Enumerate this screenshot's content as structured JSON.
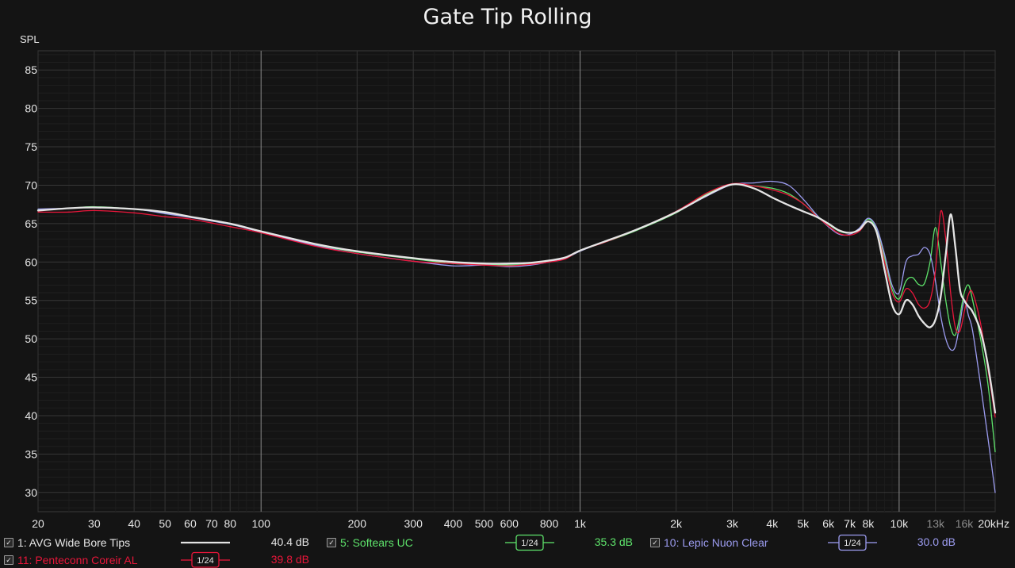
{
  "chart_data": {
    "type": "line",
    "title": "Gate Tip Rolling",
    "ylabel": "SPL",
    "xlabel": "",
    "xscale": "log",
    "xlim": [
      20,
      20000
    ],
    "ylim": [
      27.5,
      87.5
    ],
    "grid": true,
    "background": "#141414",
    "y_ticks": [
      30,
      35,
      40,
      45,
      50,
      55,
      60,
      65,
      70,
      75,
      80,
      85
    ],
    "x_ticks": [
      {
        "v": 20,
        "label": "20",
        "color": "#e6e6e6"
      },
      {
        "v": 30,
        "label": "30",
        "color": "#e6e6e6"
      },
      {
        "v": 40,
        "label": "40",
        "color": "#e6e6e6"
      },
      {
        "v": 50,
        "label": "50",
        "color": "#e6e6e6"
      },
      {
        "v": 60,
        "label": "60",
        "color": "#e6e6e6"
      },
      {
        "v": 70,
        "label": "70",
        "color": "#e6e6e6"
      },
      {
        "v": 80,
        "label": "80",
        "color": "#e6e6e6"
      },
      {
        "v": 100,
        "label": "100",
        "color": "#e6e6e6"
      },
      {
        "v": 200,
        "label": "200",
        "color": "#e6e6e6"
      },
      {
        "v": 300,
        "label": "300",
        "color": "#e6e6e6"
      },
      {
        "v": 400,
        "label": "400",
        "color": "#e6e6e6"
      },
      {
        "v": 500,
        "label": "500",
        "color": "#e6e6e6"
      },
      {
        "v": 600,
        "label": "600",
        "color": "#e6e6e6"
      },
      {
        "v": 800,
        "label": "800",
        "color": "#e6e6e6"
      },
      {
        "v": 1000,
        "label": "1k",
        "color": "#e6e6e6"
      },
      {
        "v": 2000,
        "label": "2k",
        "color": "#e6e6e6"
      },
      {
        "v": 3000,
        "label": "3k",
        "color": "#e6e6e6"
      },
      {
        "v": 4000,
        "label": "4k",
        "color": "#e6e6e6"
      },
      {
        "v": 5000,
        "label": "5k",
        "color": "#e6e6e6"
      },
      {
        "v": 6000,
        "label": "6k",
        "color": "#e6e6e6"
      },
      {
        "v": 7000,
        "label": "7k",
        "color": "#e6e6e6"
      },
      {
        "v": 8000,
        "label": "8k",
        "color": "#e6e6e6"
      },
      {
        "v": 10000,
        "label": "10k",
        "color": "#e6e6e6"
      },
      {
        "v": 13000,
        "label": "13k",
        "color": "#8c8c8c"
      },
      {
        "v": 16000,
        "label": "16k",
        "color": "#8c8c8c"
      },
      {
        "v": 20000,
        "label": "20kHz",
        "color": "#e6e6e6"
      }
    ],
    "series": [
      {
        "name": "5: Softears UC",
        "color": "#5ee36b",
        "width": 1.3,
        "points": [
          [
            20,
            66.8
          ],
          [
            25,
            67.0
          ],
          [
            30,
            67.2
          ],
          [
            40,
            66.9
          ],
          [
            50,
            66.4
          ],
          [
            60,
            65.9
          ],
          [
            80,
            64.9
          ],
          [
            100,
            64.0
          ],
          [
            150,
            62.2
          ],
          [
            200,
            61.3
          ],
          [
            300,
            60.4
          ],
          [
            400,
            59.8
          ],
          [
            500,
            59.7
          ],
          [
            600,
            59.6
          ],
          [
            700,
            59.7
          ],
          [
            800,
            60.1
          ],
          [
            900,
            60.5
          ],
          [
            1000,
            61.5
          ],
          [
            1200,
            62.6
          ],
          [
            1500,
            64.1
          ],
          [
            2000,
            66.4
          ],
          [
            2500,
            68.9
          ],
          [
            3000,
            70.1
          ],
          [
            3500,
            69.9
          ],
          [
            4000,
            69.6
          ],
          [
            4500,
            68.9
          ],
          [
            5000,
            67.6
          ],
          [
            5500,
            66.1
          ],
          [
            6000,
            64.9
          ],
          [
            6500,
            64.0
          ],
          [
            7000,
            63.8
          ],
          [
            7500,
            64.3
          ],
          [
            8000,
            65.6
          ],
          [
            8500,
            64.2
          ],
          [
            9000,
            60.5
          ],
          [
            9500,
            56.5
          ],
          [
            10000,
            55.2
          ],
          [
            10500,
            57.5
          ],
          [
            11000,
            58.0
          ],
          [
            11500,
            57.1
          ],
          [
            12000,
            57.2
          ],
          [
            12500,
            60.0
          ],
          [
            13000,
            64.5
          ],
          [
            13500,
            60.0
          ],
          [
            14000,
            55.0
          ],
          [
            14500,
            51.5
          ],
          [
            15000,
            50.5
          ],
          [
            15500,
            53.0
          ],
          [
            16000,
            56.0
          ],
          [
            16500,
            57.0
          ],
          [
            17000,
            55.0
          ],
          [
            18000,
            50.0
          ],
          [
            19000,
            44.0
          ],
          [
            20000,
            35.3
          ]
        ]
      },
      {
        "name": "10: Lepic Nuon Clear",
        "color": "#9c9cf0",
        "width": 1.3,
        "points": [
          [
            20,
            66.9
          ],
          [
            25,
            67.0
          ],
          [
            30,
            67.1
          ],
          [
            40,
            66.9
          ],
          [
            50,
            66.3
          ],
          [
            60,
            65.8
          ],
          [
            80,
            64.9
          ],
          [
            100,
            63.9
          ],
          [
            150,
            62.1
          ],
          [
            200,
            61.1
          ],
          [
            300,
            60.1
          ],
          [
            400,
            59.5
          ],
          [
            500,
            59.6
          ],
          [
            600,
            59.4
          ],
          [
            700,
            59.6
          ],
          [
            800,
            60.0
          ],
          [
            900,
            60.5
          ],
          [
            1000,
            61.4
          ],
          [
            1200,
            62.7
          ],
          [
            1500,
            64.2
          ],
          [
            2000,
            66.5
          ],
          [
            2500,
            68.6
          ],
          [
            3000,
            70.1
          ],
          [
            3500,
            70.3
          ],
          [
            4000,
            70.5
          ],
          [
            4500,
            70.0
          ],
          [
            5000,
            68.2
          ],
          [
            5500,
            66.2
          ],
          [
            6000,
            64.6
          ],
          [
            6500,
            63.6
          ],
          [
            7000,
            63.6
          ],
          [
            7500,
            64.4
          ],
          [
            8000,
            65.7
          ],
          [
            8500,
            64.5
          ],
          [
            9000,
            61.0
          ],
          [
            9500,
            57.0
          ],
          [
            10000,
            56.0
          ],
          [
            10500,
            60.0
          ],
          [
            11000,
            60.8
          ],
          [
            11500,
            61.0
          ],
          [
            12000,
            61.9
          ],
          [
            12500,
            61.0
          ],
          [
            13000,
            57.5
          ],
          [
            13500,
            53.0
          ],
          [
            14000,
            50.0
          ],
          [
            14500,
            48.6
          ],
          [
            15000,
            49.0
          ],
          [
            15500,
            52.0
          ],
          [
            16000,
            55.0
          ],
          [
            16500,
            53.0
          ],
          [
            17000,
            51.0
          ],
          [
            18000,
            44.0
          ],
          [
            19000,
            37.0
          ],
          [
            20000,
            30.0
          ]
        ]
      },
      {
        "name": "11: Penteconn Coreir AL",
        "color": "#e8163a",
        "width": 1.3,
        "points": [
          [
            20,
            66.5
          ],
          [
            25,
            66.5
          ],
          [
            30,
            66.7
          ],
          [
            40,
            66.4
          ],
          [
            50,
            65.9
          ],
          [
            60,
            65.6
          ],
          [
            80,
            64.6
          ],
          [
            100,
            63.8
          ],
          [
            150,
            62.0
          ],
          [
            200,
            61.1
          ],
          [
            300,
            60.1
          ],
          [
            400,
            59.8
          ],
          [
            500,
            59.6
          ],
          [
            600,
            59.5
          ],
          [
            700,
            59.7
          ],
          [
            800,
            60.0
          ],
          [
            900,
            60.4
          ],
          [
            1000,
            61.5
          ],
          [
            1200,
            62.6
          ],
          [
            1500,
            64.2
          ],
          [
            2000,
            66.6
          ],
          [
            2500,
            69.0
          ],
          [
            3000,
            70.2
          ],
          [
            3500,
            69.9
          ],
          [
            4000,
            69.4
          ],
          [
            4500,
            68.7
          ],
          [
            5000,
            67.6
          ],
          [
            5500,
            66.0
          ],
          [
            6000,
            64.7
          ],
          [
            6500,
            63.7
          ],
          [
            7000,
            63.5
          ],
          [
            7500,
            64.0
          ],
          [
            8000,
            65.3
          ],
          [
            8500,
            64.0
          ],
          [
            9000,
            60.0
          ],
          [
            9500,
            56.0
          ],
          [
            10000,
            54.8
          ],
          [
            10500,
            56.5
          ],
          [
            11000,
            56.0
          ],
          [
            11500,
            54.5
          ],
          [
            12000,
            54.0
          ],
          [
            12500,
            55.0
          ],
          [
            13000,
            59.0
          ],
          [
            13500,
            66.6
          ],
          [
            14000,
            63.0
          ],
          [
            14500,
            56.0
          ],
          [
            15000,
            51.5
          ],
          [
            15500,
            51.0
          ],
          [
            16000,
            53.5
          ],
          [
            16500,
            55.8
          ],
          [
            17000,
            56.0
          ],
          [
            18000,
            52.0
          ],
          [
            19000,
            46.0
          ],
          [
            20000,
            39.8
          ]
        ]
      },
      {
        "name": "1: AVG Wide Bore Tips",
        "color": "#e4e4e4",
        "width": 2.3,
        "points": [
          [
            20,
            66.7
          ],
          [
            25,
            67.0
          ],
          [
            30,
            67.1
          ],
          [
            40,
            66.9
          ],
          [
            50,
            66.5
          ],
          [
            60,
            65.9
          ],
          [
            80,
            65.0
          ],
          [
            100,
            64.0
          ],
          [
            150,
            62.3
          ],
          [
            200,
            61.4
          ],
          [
            300,
            60.5
          ],
          [
            400,
            60.0
          ],
          [
            500,
            59.8
          ],
          [
            600,
            59.8
          ],
          [
            700,
            59.9
          ],
          [
            800,
            60.2
          ],
          [
            900,
            60.6
          ],
          [
            1000,
            61.5
          ],
          [
            1200,
            62.7
          ],
          [
            1500,
            64.2
          ],
          [
            2000,
            66.5
          ],
          [
            2500,
            68.7
          ],
          [
            3000,
            70.1
          ],
          [
            3500,
            69.6
          ],
          [
            4000,
            68.4
          ],
          [
            4500,
            67.4
          ],
          [
            5000,
            66.6
          ],
          [
            5500,
            65.9
          ],
          [
            6000,
            65.0
          ],
          [
            6500,
            64.1
          ],
          [
            7000,
            63.8
          ],
          [
            7500,
            64.2
          ],
          [
            8000,
            65.3
          ],
          [
            8500,
            63.9
          ],
          [
            9000,
            59.0
          ],
          [
            9500,
            54.5
          ],
          [
            10000,
            53.2
          ],
          [
            10500,
            55.0
          ],
          [
            11000,
            54.5
          ],
          [
            11500,
            53.0
          ],
          [
            12000,
            52.0
          ],
          [
            12500,
            51.5
          ],
          [
            13000,
            52.5
          ],
          [
            13500,
            55.5
          ],
          [
            14000,
            61.0
          ],
          [
            14500,
            66.2
          ],
          [
            15000,
            62.0
          ],
          [
            15500,
            56.5
          ],
          [
            16000,
            55.0
          ],
          [
            16500,
            54.2
          ],
          [
            17000,
            53.5
          ],
          [
            18000,
            51.0
          ],
          [
            19000,
            46.5
          ],
          [
            20000,
            40.4
          ]
        ]
      }
    ],
    "legend": [
      {
        "label": "1: AVG Wide Bore Tips",
        "db": "40.4 dB",
        "color": "#e4e4e4",
        "smoothing": null
      },
      {
        "label": "5: Softears UC",
        "db": "35.3 dB",
        "color": "#5ee36b",
        "smoothing": "1/24"
      },
      {
        "label": "10: Lepic Nuon Clear",
        "db": "30.0 dB",
        "color": "#9c9cf0",
        "smoothing": "1/24"
      },
      {
        "label": "11: Penteconn Coreir AL",
        "db": "39.8 dB",
        "color": "#e8163a",
        "smoothing": "1/24"
      }
    ]
  }
}
